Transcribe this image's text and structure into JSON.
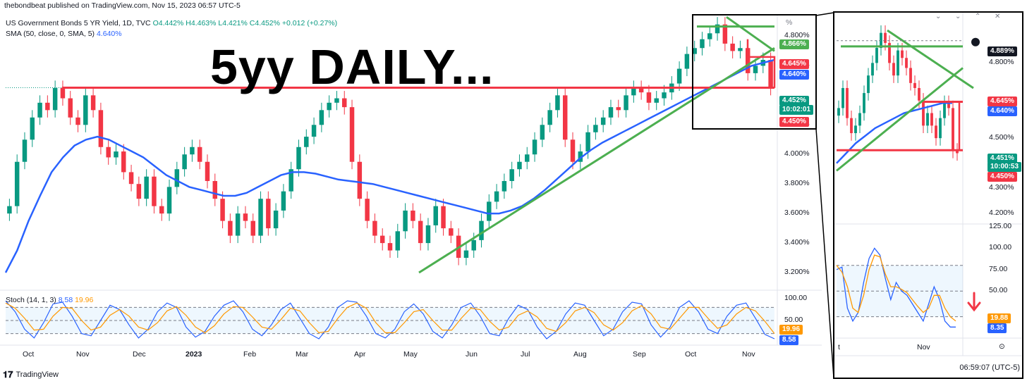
{
  "publisher": "thebondbeat published on TradingView.com, Nov 15, 2023 06:57 UTC-5",
  "legend": {
    "title": "US Government Bonds 5 YR Yield, 1D, TVC",
    "o": "O4.442%",
    "h": "H4.463%",
    "l": "L4.421%",
    "c": "C4.452%",
    "chg": "+0.012 (+0.27%)",
    "sma_label": "SMA (50, close, 0, SMA, 5)",
    "sma_value": "4.640%",
    "stoch_label": "Stoch (14, 1, 3)",
    "stoch_k": "8.58",
    "stoch_d": "19.96"
  },
  "headline": "5yy DAILY...",
  "footer": {
    "brand": "TradingView",
    "clock": "06:59:07 (UTC-5)",
    "inset_x_cut": "t",
    "inset_x_nov": "Nov",
    "pct_icon": "%"
  },
  "colors": {
    "up": "#089981",
    "down": "#f23645",
    "sma": "#2962ff",
    "trend": "#4caf50",
    "stoch_k": "#2962ff",
    "stoch_d": "#ff9800",
    "box": "#000000"
  },
  "chart_data": [
    {
      "type": "candlestick",
      "title": "US Government Bonds 5 YR Yield, 1D, TVC",
      "ylim": [
        3.1,
        4.95
      ],
      "x_ticks": [
        "Oct",
        "Nov",
        "Dec",
        "2023",
        "Feb",
        "Mar",
        "Apr",
        "May",
        "Jun",
        "Jul",
        "Aug",
        "Sep",
        "Oct",
        "Nov"
      ],
      "y_ticks": [
        "4.800%",
        "4.600%",
        "4.200%",
        "4.000%",
        "3.800%",
        "3.600%",
        "3.400%",
        "3.200%"
      ],
      "series": [
        {
          "name": "close",
          "values": [
            3.65,
            3.95,
            4.1,
            4.25,
            4.35,
            4.3,
            4.45,
            4.38,
            4.25,
            4.2,
            4.4,
            4.3,
            4.05,
            3.98,
            4.02,
            3.88,
            3.8,
            3.7,
            3.85,
            3.65,
            3.6,
            3.78,
            3.9,
            4.0,
            4.05,
            3.95,
            3.82,
            3.7,
            3.55,
            3.45,
            3.6,
            3.55,
            3.45,
            3.7,
            3.5,
            3.62,
            3.75,
            3.9,
            4.05,
            4.12,
            4.2,
            4.3,
            4.35,
            4.38,
            4.32,
            3.95,
            3.7,
            3.55,
            3.45,
            3.4,
            3.35,
            3.48,
            3.62,
            3.55,
            3.4,
            3.52,
            3.65,
            3.5,
            3.45,
            3.3,
            3.35,
            3.42,
            3.55,
            3.68,
            3.75,
            3.82,
            3.9,
            3.95,
            4.0,
            4.1,
            4.2,
            4.3,
            4.4,
            4.1,
            3.95,
            4.02,
            4.15,
            4.2,
            4.25,
            4.32,
            4.3,
            4.4,
            4.45,
            4.42,
            4.35,
            4.38,
            4.42,
            4.48,
            4.58,
            4.68,
            4.72,
            4.78,
            4.82,
            4.88,
            4.75,
            4.7,
            4.72,
            4.55,
            4.6,
            4.64,
            4.45
          ]
        },
        {
          "name": "SMA (50, close, 0, SMA, 5)",
          "values": [
            3.2,
            3.35,
            3.55,
            3.72,
            3.88,
            3.98,
            4.06,
            4.1,
            4.12,
            4.1,
            4.06,
            4.02,
            3.98,
            3.92,
            3.86,
            3.82,
            3.78,
            3.76,
            3.74,
            3.72,
            3.72,
            3.74,
            3.78,
            3.82,
            3.86,
            3.88,
            3.88,
            3.87,
            3.85,
            3.83,
            3.82,
            3.81,
            3.8,
            3.78,
            3.76,
            3.74,
            3.72,
            3.7,
            3.68,
            3.66,
            3.64,
            3.62,
            3.6,
            3.6,
            3.62,
            3.65,
            3.7,
            3.76,
            3.83,
            3.9,
            3.97,
            4.03,
            4.08,
            4.12,
            4.16,
            4.2,
            4.24,
            4.28,
            4.32,
            4.36,
            4.4,
            4.44,
            4.48,
            4.52,
            4.56,
            4.6,
            4.62,
            4.64
          ]
        }
      ],
      "levels": {
        "resistance": 4.452,
        "upper": 4.866
      }
    },
    {
      "type": "line",
      "title": "Stoch (14, 1, 3)",
      "ylim": [
        0,
        100
      ],
      "y_ticks": [
        "100.00",
        "50.00"
      ],
      "bands": [
        20,
        80
      ],
      "series": [
        {
          "name": "%K",
          "values": [
            95,
            70,
            30,
            10,
            45,
            88,
            92,
            60,
            20,
            15,
            50,
            85,
            75,
            40,
            10,
            30,
            70,
            90,
            80,
            35,
            12,
            25,
            60,
            85,
            95,
            70,
            30,
            15,
            40,
            75,
            90,
            55,
            20,
            8,
            35,
            80,
            95,
            92,
            60,
            20,
            10,
            30,
            70,
            88,
            65,
            25,
            10,
            40,
            80,
            90,
            60,
            20,
            15,
            55,
            85,
            75,
            35,
            8,
            25,
            65,
            90,
            85,
            50,
            15,
            30,
            70,
            92,
            88,
            40,
            12,
            35,
            80,
            95,
            70,
            30,
            20,
            60,
            85,
            90,
            55,
            18,
            8
          ]
        },
        {
          "name": "%D",
          "values": [
            90,
            78,
            55,
            28,
            30,
            60,
            80,
            78,
            50,
            28,
            35,
            62,
            75,
            60,
            35,
            28,
            45,
            72,
            82,
            62,
            35,
            22,
            38,
            65,
            82,
            80,
            58,
            35,
            30,
            52,
            78,
            72,
            45,
            22,
            25,
            55,
            80,
            90,
            78,
            45,
            22,
            22,
            45,
            70,
            75,
            50,
            28,
            28,
            55,
            78,
            75,
            48,
            28,
            35,
            62,
            72,
            58,
            32,
            25,
            45,
            72,
            80,
            68,
            40,
            28,
            45,
            72,
            84,
            65,
            35,
            30,
            55,
            80,
            80,
            55,
            32,
            40,
            65,
            80,
            72,
            48,
            20
          ]
        }
      ]
    },
    {
      "type": "candlestick",
      "title": "",
      "ylim": [
        4.18,
        4.95
      ],
      "y_ticks": [
        "4.800%",
        "4.600%",
        "4.500%",
        "4.300%",
        "4.200%"
      ],
      "x_ticks": [
        "t",
        "Nov"
      ],
      "series": [
        {
          "name": "close",
          "values": [
            4.62,
            4.7,
            4.58,
            4.52,
            4.55,
            4.6,
            4.68,
            4.75,
            4.8,
            4.86,
            4.92,
            4.88,
            4.8,
            4.75,
            4.85,
            4.82,
            4.78,
            4.72,
            4.7,
            4.65,
            4.55,
            4.6,
            4.55,
            4.5,
            4.58,
            4.64,
            4.62,
            4.45,
            4.44
          ]
        },
        {
          "name": "SMA (50, close, 0, SMA, 5)",
          "values": [
            4.4,
            4.44,
            4.48,
            4.51,
            4.54,
            4.56,
            4.58,
            4.6,
            4.61,
            4.62,
            4.63,
            4.64,
            4.64
          ]
        }
      ],
      "levels": {
        "resistance": 4.452,
        "mid": 4.645,
        "upper": 4.866
      }
    },
    {
      "type": "line",
      "title": "",
      "ylim": [
        0,
        125
      ],
      "y_ticks": [
        "125.00",
        "100.00",
        "75.00",
        "50.00"
      ],
      "bands": [
        20,
        80
      ],
      "series": [
        {
          "name": "%K",
          "values": [
            75,
            78,
            30,
            15,
            25,
            60,
            88,
            100,
            92,
            65,
            40,
            60,
            50,
            45,
            35,
            25,
            15,
            35,
            55,
            40,
            15,
            8,
            8
          ]
        },
        {
          "name": "%D",
          "values": [
            80,
            72,
            55,
            30,
            25,
            45,
            75,
            92,
            90,
            70,
            55,
            55,
            52,
            48,
            40,
            32,
            25,
            30,
            45,
            45,
            30,
            20,
            15
          ]
        }
      ]
    }
  ],
  "axis_badges": {
    "main": [
      {
        "text": "4.866%",
        "color": "#4caf50",
        "value": 4.866
      },
      {
        "text": "4.645%",
        "color": "#f23645",
        "value": 4.645
      },
      {
        "text": "4.640%",
        "color": "#2962ff",
        "value": 4.64
      },
      {
        "text": "4.452%",
        "color": "#089981",
        "value": 4.452
      },
      {
        "text": "10:02:01",
        "color": "#089981",
        "value": 4.452
      },
      {
        "text": "4.450%",
        "color": "#f23645",
        "value": 4.45
      }
    ],
    "main_stoch": [
      {
        "text": "19.96",
        "color": "#ff9800"
      },
      {
        "text": "8.58",
        "color": "#2962ff"
      }
    ],
    "inset": [
      {
        "text": "4.889%",
        "color": "#131722"
      },
      {
        "text": "4.645%",
        "color": "#f23645"
      },
      {
        "text": "4.640%",
        "color": "#2962ff"
      },
      {
        "text": "4.451%",
        "color": "#089981"
      },
      {
        "text": "10:00:53",
        "color": "#089981"
      },
      {
        "text": "4.450%",
        "color": "#f23645"
      }
    ],
    "inset_stoch": [
      {
        "text": "19.88",
        "color": "#ff9800"
      },
      {
        "text": "8.35",
        "color": "#2962ff"
      }
    ]
  }
}
